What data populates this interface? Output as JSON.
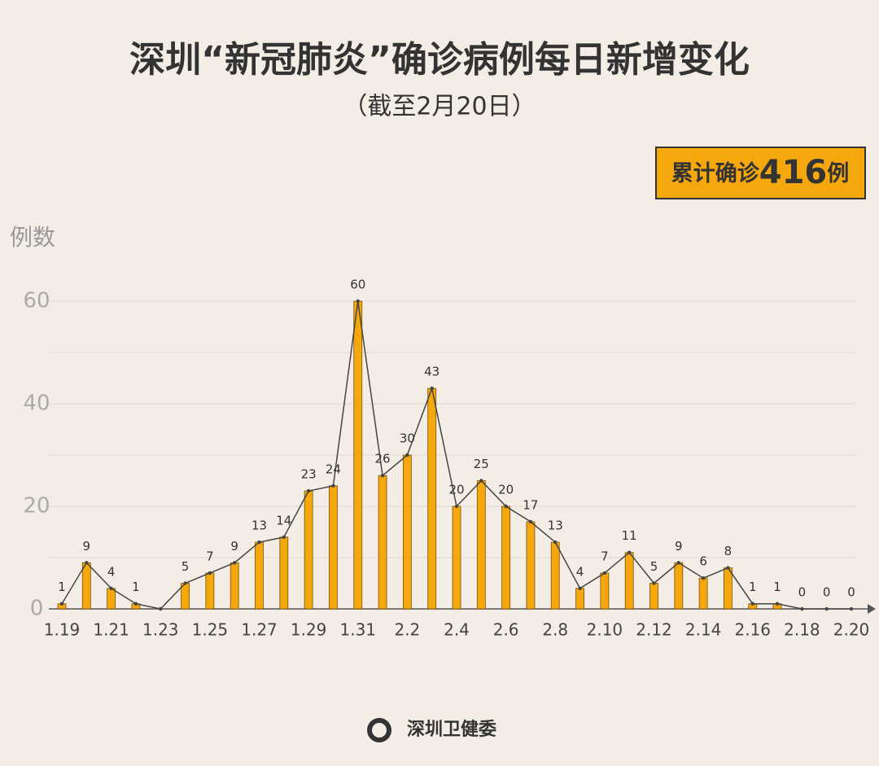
{
  "chart_data": {
    "type": "bar_line",
    "title": "深圳“新冠肺炎”确诊病例每日新增变化",
    "subtitle": "（截至2月20日）",
    "total_box": {
      "prefix": "累计确诊",
      "total": 416,
      "suffix": "例"
    },
    "y_label": "例数",
    "source": "深圳卫健委",
    "categories": [
      "1.19",
      null,
      "1.21",
      null,
      "1.23",
      null,
      "1.25",
      null,
      "1.27",
      null,
      "1.29",
      null,
      "1.31",
      null,
      "2.2",
      null,
      "2.4",
      null,
      "2.6",
      null,
      "2.8",
      null,
      "2.10",
      null,
      "2.12",
      null,
      "2.14",
      null,
      "2.16",
      null,
      "2.18",
      null,
      "2.20"
    ],
    "values": [
      1,
      9,
      4,
      1,
      0,
      5,
      7,
      9,
      13,
      14,
      23,
      24,
      60,
      26,
      30,
      43,
      20,
      25,
      20,
      17,
      13,
      4,
      7,
      11,
      5,
      9,
      6,
      8,
      1,
      1,
      0,
      0,
      0
    ],
    "value_labels": [
      "1",
      "9",
      "4",
      "1",
      null,
      "5",
      "7",
      "9",
      "13",
      "14",
      "23",
      "24",
      "60",
      "26",
      "30",
      "43",
      "20",
      "25",
      "20",
      "17",
      "13",
      "4",
      "7",
      "11",
      "5",
      "9",
      "6",
      "8",
      "1",
      "1",
      "0",
      "0",
      "0"
    ],
    "color": "#f5a70e",
    "line_color": "#444444",
    "ylim": [
      0,
      60
    ],
    "yticks": [
      0,
      20,
      40,
      60
    ],
    "minor_yticks": [
      10,
      30,
      50
    ],
    "grid": true
  }
}
